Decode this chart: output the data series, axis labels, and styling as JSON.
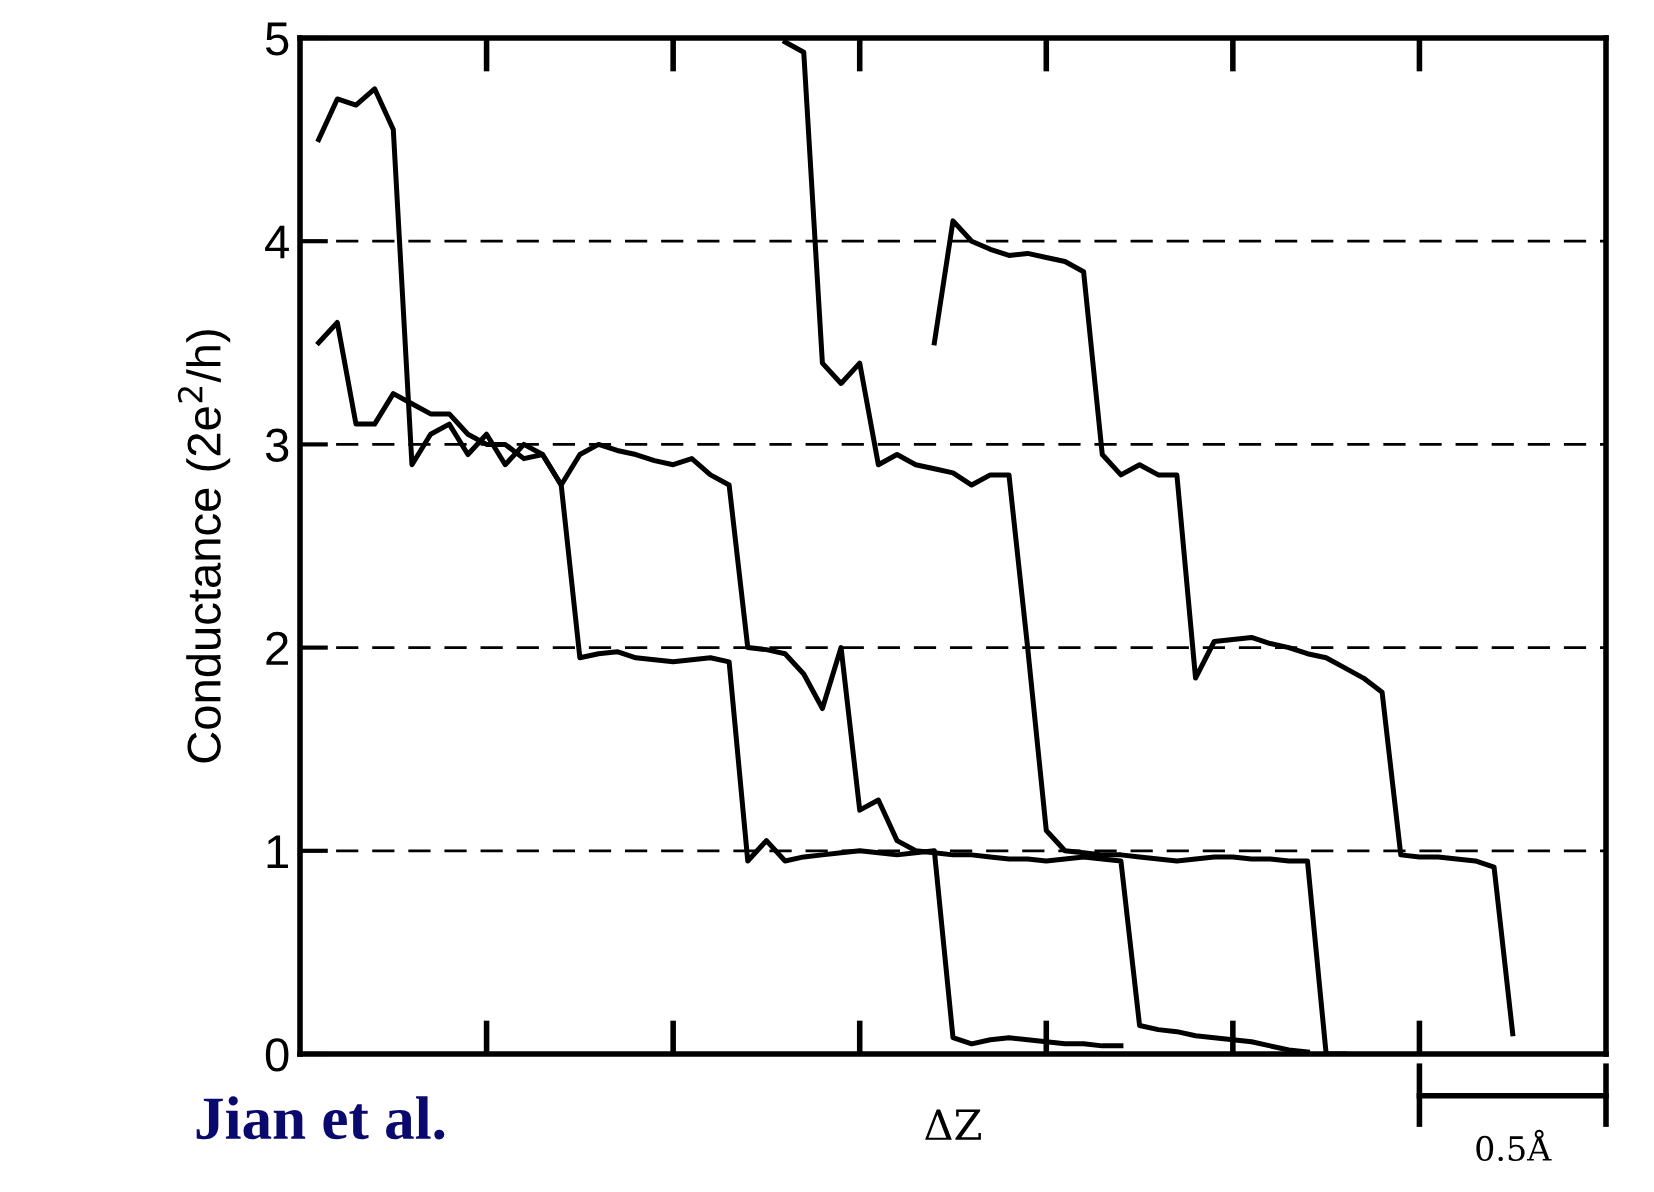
{
  "chart_data": {
    "type": "line",
    "xlabel": "ΔZ",
    "ylabel": "Conductance (2e$^{2}$/h)",
    "annotations": [
      "Jian et al.",
      "0.5Å"
    ],
    "categories": [
      null,
      null,
      null,
      null,
      null,
      null,
      null,
      null,
      null,
      null,
      null,
      null,
      null,
      null,
      null,
      null,
      null,
      null,
      null,
      null,
      null,
      null,
      null,
      null,
      null,
      null,
      null,
      null,
      null,
      null,
      null,
      null,
      null,
      null,
      null,
      null,
      null,
      null,
      null,
      null,
      null,
      null,
      null,
      null,
      null,
      null,
      null,
      null,
      null,
      null,
      null,
      null,
      null,
      null,
      null,
      null,
      null,
      null,
      null,
      null,
      null,
      null,
      null,
      null,
      null,
      null,
      null,
      null,
      null,
      null,
      null
    ],
    "ylim": [
      0,
      5
    ],
    "yticks": [
      0,
      1,
      2,
      3,
      4,
      5
    ],
    "grid": "y",
    "marker": "none",
    "line_style": "solid",
    "series": [
      {
        "color": "#000000",
        "values": [
          null,
          4.5,
          4.7,
          4.67,
          4.75,
          4.55,
          2.9,
          3.05,
          3.1,
          2.95,
          3.05,
          2.9,
          3.0,
          2.95,
          2.8,
          1.95,
          1.97,
          1.98,
          1.95,
          1.94,
          1.93,
          1.94,
          1.95,
          1.93,
          0.95,
          1.05,
          0.95,
          0.97,
          0.98,
          0.99,
          1.0,
          0.99,
          0.98,
          0.99,
          1.0,
          0.08,
          0.05,
          0.07,
          0.08,
          0.07,
          0.06,
          0.05,
          0.05,
          0.04,
          0.04,
          null,
          null,
          null,
          null,
          null,
          null,
          null,
          null,
          null,
          null,
          null,
          null,
          null,
          null,
          null,
          null,
          null,
          null,
          null,
          null,
          null,
          null,
          null,
          null,
          null,
          null
        ]
      },
      {
        "color": "#000000",
        "values": [
          null,
          3.5,
          3.6,
          3.1,
          3.1,
          3.25,
          3.2,
          3.15,
          3.15,
          3.05,
          3.0,
          3.0,
          2.93,
          2.95,
          2.8,
          2.95,
          3.0,
          2.97,
          2.95,
          2.92,
          2.9,
          2.93,
          2.85,
          2.8,
          2.0,
          1.99,
          1.97,
          1.87,
          1.7,
          2.0,
          1.2,
          1.25,
          1.05,
          1.0,
          0.99,
          0.98,
          0.98,
          0.97,
          0.96,
          0.96,
          0.95,
          0.96,
          0.97,
          0.96,
          0.95,
          0.14,
          0.12,
          0.11,
          0.09,
          0.08,
          0.07,
          0.06,
          0.04,
          0.02,
          0.01,
          null,
          null,
          null,
          null,
          null,
          null,
          null,
          null,
          null,
          null,
          null,
          null,
          null,
          null,
          null,
          null
        ]
      },
      {
        "color": "#000000",
        "values": [
          null,
          null,
          null,
          null,
          null,
          null,
          null,
          null,
          null,
          null,
          null,
          null,
          null,
          null,
          null,
          null,
          null,
          null,
          null,
          null,
          null,
          null,
          null,
          null,
          null,
          null,
          4.98,
          4.93,
          3.4,
          3.3,
          3.4,
          2.9,
          2.95,
          2.9,
          2.88,
          2.86,
          2.8,
          2.85,
          2.85,
          2.0,
          1.1,
          1.0,
          0.99,
          0.98,
          0.98,
          0.97,
          0.96,
          0.95,
          0.96,
          0.97,
          0.97,
          0.96,
          0.96,
          0.95,
          0.95,
          0.0,
          0.0,
          null,
          null,
          null,
          null,
          null,
          null,
          null,
          null,
          null,
          null,
          null,
          null,
          null,
          null
        ]
      },
      {
        "color": "#000000",
        "values": [
          null,
          null,
          null,
          null,
          null,
          null,
          null,
          null,
          null,
          null,
          null,
          null,
          null,
          null,
          null,
          null,
          null,
          null,
          null,
          null,
          null,
          null,
          null,
          null,
          null,
          null,
          null,
          null,
          null,
          null,
          null,
          null,
          null,
          null,
          3.5,
          4.1,
          4.0,
          3.96,
          3.93,
          3.94,
          3.92,
          3.9,
          3.85,
          2.95,
          2.85,
          2.9,
          2.85,
          2.85,
          1.85,
          2.03,
          2.04,
          2.05,
          2.02,
          2.0,
          1.97,
          1.95,
          1.9,
          1.85,
          1.78,
          0.98,
          0.97,
          0.97,
          0.96,
          0.95,
          0.92,
          0.1,
          null,
          null,
          null,
          null,
          null
        ]
      }
    ]
  }
}
